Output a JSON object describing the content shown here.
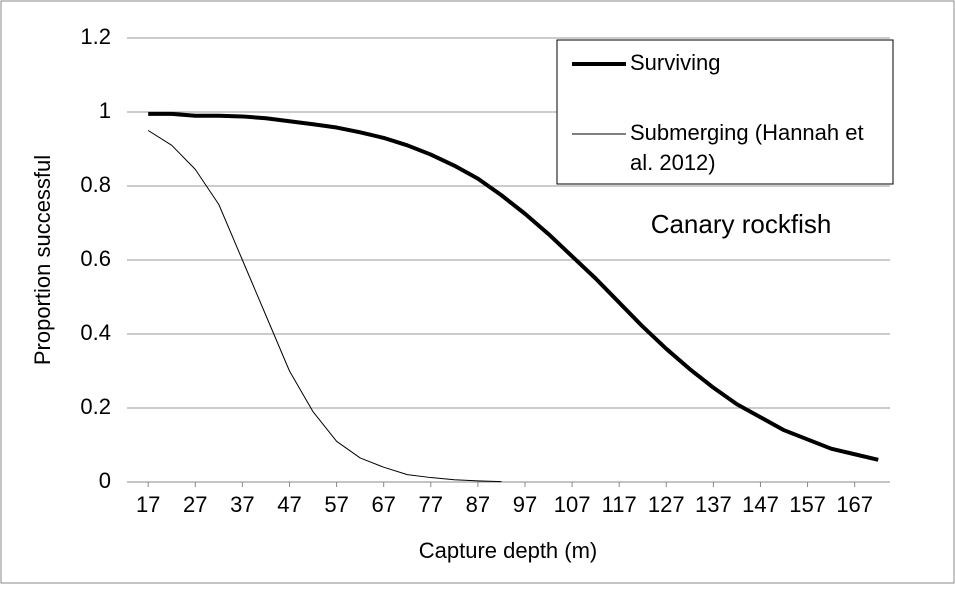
{
  "chart_data": {
    "type": "line",
    "y_label": "Proportion successful",
    "x_label": "Capture depth  (m)",
    "annotation": "Canary rockfish",
    "x": [
      17,
      22,
      27,
      32,
      37,
      42,
      47,
      52,
      57,
      62,
      67,
      72,
      77,
      82,
      87,
      92,
      97,
      102,
      107,
      112,
      117,
      122,
      127,
      132,
      137,
      142,
      147,
      152,
      157,
      162,
      167,
      172
    ],
    "series": [
      {
        "name": "Surviving",
        "color": "#000000",
        "width": 4,
        "values": [
          0.995,
          0.995,
          0.99,
          0.99,
          0.988,
          0.983,
          0.975,
          0.967,
          0.958,
          0.945,
          0.93,
          0.91,
          0.885,
          0.855,
          0.82,
          0.775,
          0.725,
          0.67,
          0.61,
          0.55,
          0.485,
          0.42,
          0.36,
          0.305,
          0.255,
          0.21,
          0.175,
          0.14,
          0.115,
          0.09,
          0.075,
          0.06
        ]
      },
      {
        "name": "Submerging (Hannah et al. 2012)",
        "color": "#000000",
        "width": 1,
        "values": [
          0.95,
          0.91,
          0.845,
          0.75,
          0.6,
          0.45,
          0.3,
          0.19,
          0.11,
          0.065,
          0.04,
          0.02,
          0.012,
          0.006,
          0.003,
          0.001,
          null,
          null,
          null,
          null,
          null,
          null,
          null,
          null,
          null,
          null,
          null,
          null,
          null,
          null,
          null,
          null
        ]
      }
    ],
    "xlim": [
      12.5,
      174.5
    ],
    "xticks": [
      17,
      27,
      37,
      47,
      57,
      67,
      77,
      87,
      97,
      107,
      117,
      127,
      137,
      147,
      157,
      167
    ],
    "ylim": [
      0,
      1.2
    ],
    "yticks": [
      0,
      0.2,
      0.4,
      0.6,
      0.8,
      1,
      1.2
    ],
    "grid": true,
    "legend": "top-right"
  }
}
